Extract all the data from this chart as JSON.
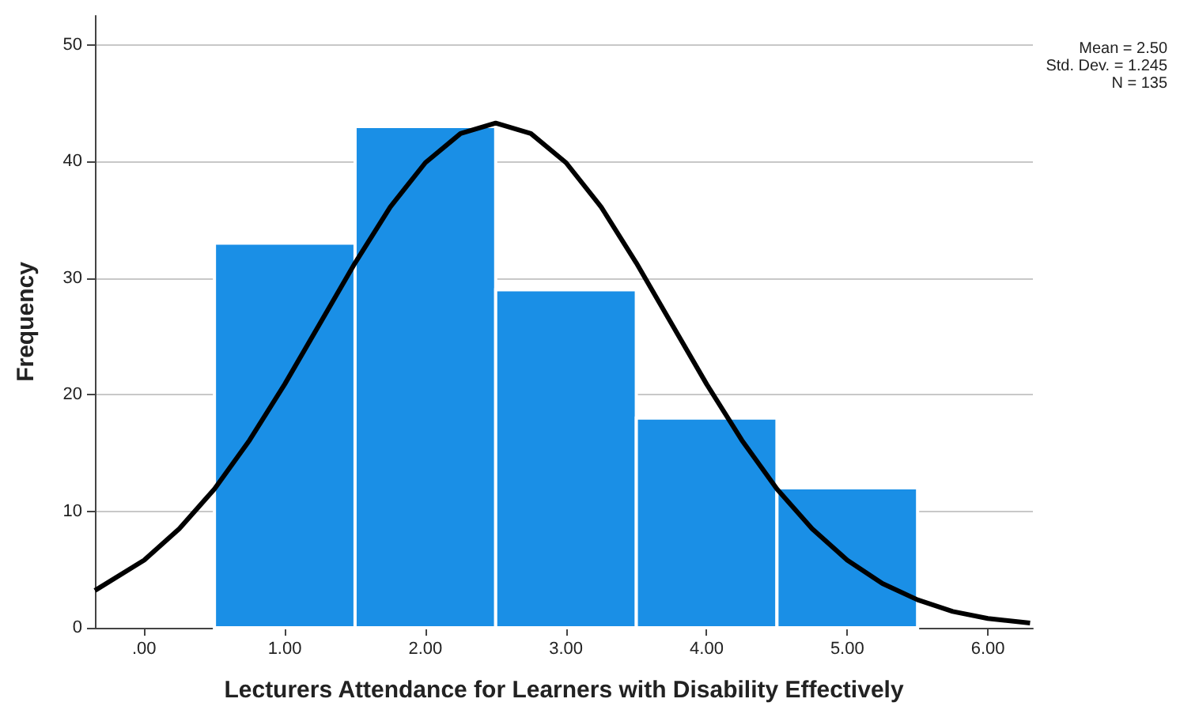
{
  "chart_data": {
    "type": "histogram",
    "xlabel": "Lecturers Attendance for Learners with Disability Effectively",
    "ylabel": "Frequency",
    "annotations": [
      "Mean = 2.50",
      "Std. Dev. = 1.245",
      "N = 135"
    ],
    "xlim": [
      -0.35,
      6.32
    ],
    "xticks": [
      {
        "value": 0,
        "label": ".00"
      },
      {
        "value": 1,
        "label": "1.00"
      },
      {
        "value": 2,
        "label": "2.00"
      },
      {
        "value": 3,
        "label": "3.00"
      },
      {
        "value": 4,
        "label": "4.00"
      },
      {
        "value": 5,
        "label": "5.00"
      },
      {
        "value": 6,
        "label": "6.00"
      }
    ],
    "ylim": [
      0,
      52.5
    ],
    "yticks": [
      0,
      10,
      20,
      30,
      40,
      50
    ],
    "grid": "y",
    "series": [
      {
        "color": "#1a8fe6",
        "bins": [
          0.5,
          1.5,
          2.5,
          3.5,
          4.5,
          5.5
        ],
        "values": [
          33,
          43,
          29,
          18,
          12
        ]
      },
      {
        "type": "line",
        "color": "#000000",
        "marker": "none",
        "line_style": "solid",
        "x": [
          -0.35,
          0,
          0.25,
          0.5,
          0.75,
          1,
          1.25,
          1.5,
          1.75,
          2,
          2.25,
          2.5,
          2.75,
          3,
          3.25,
          3.5,
          3.75,
          4,
          4.25,
          4.5,
          4.75,
          5,
          5.25,
          5.5,
          5.75,
          6,
          6.3
        ],
        "values": [
          3.2,
          5.8,
          8.5,
          11.9,
          16.1,
          20.9,
          26.1,
          31.3,
          36.1,
          39.9,
          42.4,
          43.3,
          42.4,
          39.9,
          36.1,
          31.3,
          26.1,
          20.9,
          16.1,
          11.9,
          8.5,
          5.8,
          3.8,
          2.4,
          1.4,
          0.8,
          0.4
        ]
      }
    ]
  }
}
